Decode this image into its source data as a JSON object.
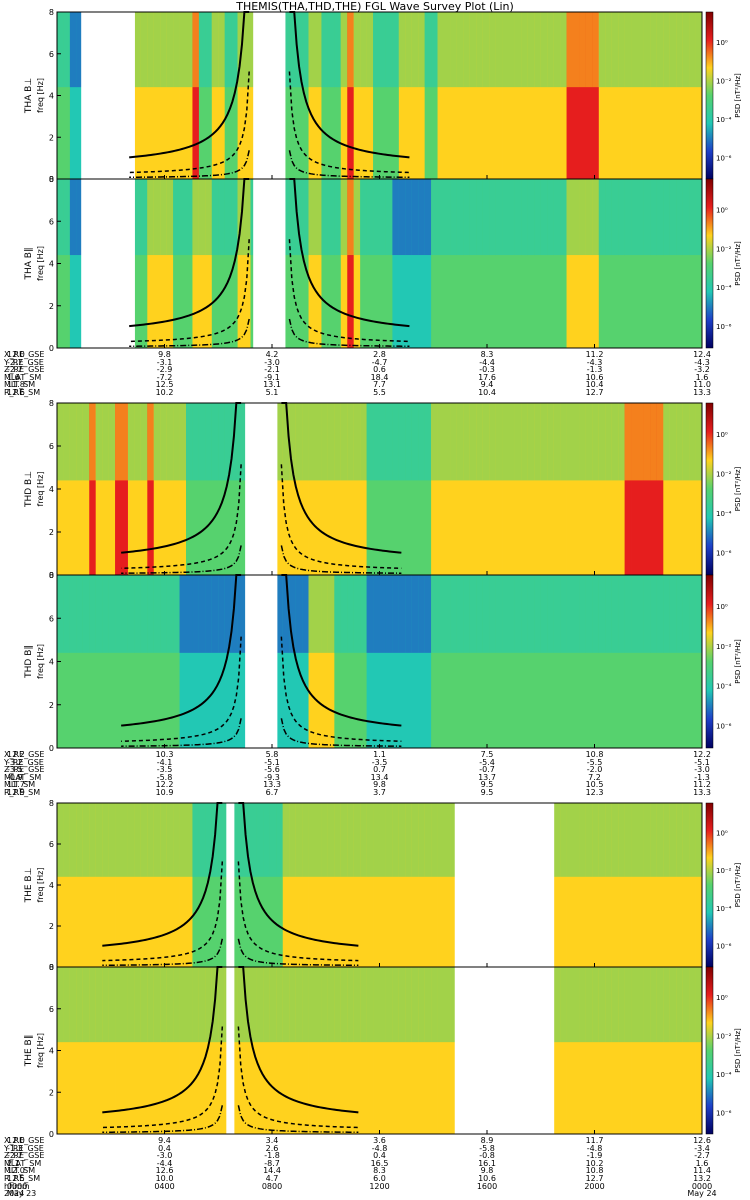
{
  "title": "THEMIS(THA,THD,THE) FGL Wave Survey Plot (Lin)",
  "colors": {
    "background": "#ffffff",
    "spectrum_low": "#1e40c8",
    "spectrum_mid": "#22c8b4",
    "spectrum_high": "#ffd21e",
    "spectrum_peak": "#e61e1e",
    "gap": "#ffffff",
    "curve": "#000000"
  },
  "colorbar": {
    "label": "PSD [nT²/Hz]",
    "ticks": [
      "10⁰",
      "10⁻²",
      "10⁻⁴",
      "10⁻⁶"
    ]
  },
  "freq_label": "freq [Hz]",
  "y_ticks": [
    "0",
    "2",
    "4",
    "6",
    "8"
  ],
  "panels": [
    {
      "probe": "THA",
      "label": "THA B⊥"
    },
    {
      "probe": "THA",
      "label": "THA B∥"
    },
    {
      "probe": "THD",
      "label": "THD B⊥"
    },
    {
      "probe": "THD",
      "label": "THD B∥"
    },
    {
      "probe": "THE",
      "label": "THE B⊥"
    },
    {
      "probe": "THE",
      "label": "THE B∥"
    }
  ],
  "ephemeris": [
    {
      "probe": "THA",
      "rows": [
        {
          "label": "X_RE_GSE",
          "values": [
            "12.0",
            "9.8",
            "4.2",
            "2.8",
            "8.3",
            "11.2",
            "12.4"
          ]
        },
        {
          "label": "Y_RE_GSE",
          "values": [
            "-2.7",
            "-3.1",
            "-3.0",
            "-4.7",
            "-4.4",
            "-4.3",
            "-4.3"
          ]
        },
        {
          "label": "Z_RE_GSE",
          "values": [
            "-2.7",
            "-2.9",
            "-2.1",
            "0.6",
            "-0.3",
            "-1.3",
            "-3.2"
          ]
        },
        {
          "label": "MLAT_SM",
          "values": [
            "1.6",
            "-7.2",
            "-9.1",
            "18.4",
            "17.6",
            "10.6",
            "1.6"
          ]
        },
        {
          "label": "MLT_SM",
          "values": [
            "11.8",
            "12.5",
            "13.1",
            "7.7",
            "9.4",
            "10.4",
            "11.0"
          ]
        },
        {
          "label": "R_RE_SM",
          "values": [
            "12.6",
            "10.2",
            "5.1",
            "5.5",
            "10.4",
            "12.7",
            "13.3"
          ]
        }
      ]
    },
    {
      "probe": "THD",
      "rows": [
        {
          "label": "X_RE_GSE",
          "values": [
            "12.2",
            "10.3",
            "5.8",
            "1.1",
            "7.5",
            "10.8",
            "12.2"
          ]
        },
        {
          "label": "Y_RE_GSE",
          "values": [
            "-3.2",
            "-4.1",
            "-5.1",
            "-3.5",
            "-5.4",
            "-5.5",
            "-5.1"
          ]
        },
        {
          "label": "Z_RE_GSE",
          "values": [
            "-3.5",
            "-3.5",
            "-5.6",
            "0.7",
            "-0.7",
            "-2.0",
            "-3.0"
          ]
        },
        {
          "label": "MLAT_SM",
          "values": [
            "-0.9",
            "-5.8",
            "-9.3",
            "13.4",
            "13.7",
            "7.2",
            "-1.3"
          ]
        },
        {
          "label": "MLT_SM",
          "values": [
            "11.7",
            "12.2",
            "13.3",
            "9.8",
            "9.5",
            "10.5",
            "11.2"
          ]
        },
        {
          "label": "R_RE_SM",
          "values": [
            "12.9",
            "10.9",
            "6.7",
            "3.7",
            "9.5",
            "12.3",
            "13.3"
          ]
        }
      ]
    },
    {
      "probe": "THE",
      "rows": [
        {
          "label": "X_RE_GSE",
          "values": [
            "12.0",
            "9.4",
            "3.4",
            "3.6",
            "8.9",
            "11.7",
            "12.6"
          ]
        },
        {
          "label": "Y_RE_GSE",
          "values": [
            "-1.3",
            "0.4",
            "2.6",
            "-4.8",
            "-5.8",
            "-4.8",
            "-3.4"
          ]
        },
        {
          "label": "Z_RE_GSE",
          "values": [
            "-2.7",
            "-3.0",
            "-1.8",
            "0.4",
            "-0.8",
            "-1.9",
            "-2.7"
          ]
        },
        {
          "label": "MLAT_SM",
          "values": [
            "2.1",
            "-4.4",
            "-8.7",
            "16.5",
            "16.1",
            "10.2",
            "1.6"
          ]
        },
        {
          "label": "MLT_SM",
          "values": [
            "12.0",
            "12.6",
            "14.4",
            "8.3",
            "9.8",
            "10.8",
            "11.4"
          ]
        },
        {
          "label": "R_RE_SM",
          "values": [
            "12.5",
            "10.0",
            "4.7",
            "6.0",
            "10.6",
            "12.7",
            "13.2"
          ]
        },
        {
          "label": "hhmm",
          "values": [
            "0000",
            "0400",
            "0800",
            "1200",
            "1600",
            "2000",
            "0000"
          ]
        },
        {
          "label": "2024",
          "values": [
            "May 23",
            "",
            "",
            "",
            "",
            "",
            "May 24"
          ]
        }
      ]
    }
  ],
  "chart_data": {
    "type": "heatmap",
    "title": "THEMIS(THA,THD,THE) FGL Wave Survey Plot (Lin)",
    "ylabel": "freq [Hz]",
    "ylim": [
      0,
      8
    ],
    "yticks": [
      0,
      2,
      4,
      6,
      8
    ],
    "xlim_hours": [
      0,
      24
    ],
    "x_tick_labels": [
      "0000",
      "0400",
      "0800",
      "1200",
      "1600",
      "2000",
      "0000"
    ],
    "date_labels": [
      "May 23",
      "May 24"
    ],
    "colorbar_label": "PSD [nT²/Hz]",
    "colorbar_ticks": [
      "10⁰",
      "10⁻²",
      "10⁻⁴",
      "10⁻⁶"
    ],
    "series": [
      {
        "panel": "THA B⊥",
        "gaps_hours": [
          [
            0.9,
            2.9
          ],
          [
            7.3,
            8.5
          ]
        ],
        "intensity": [
          2,
          2,
          1,
          1,
          1,
          1,
          1,
          1,
          2,
          2,
          2,
          3,
          3,
          3,
          3,
          3,
          3,
          3,
          3,
          3,
          3,
          4,
          2,
          2,
          3,
          3,
          2,
          2,
          3,
          3,
          3,
          2,
          2,
          2,
          2,
          2,
          2,
          2,
          2,
          3,
          3,
          2,
          2,
          2,
          3,
          4,
          3,
          3,
          3,
          2,
          2,
          2,
          2,
          3,
          3,
          3,
          3,
          2,
          2,
          3,
          3,
          3,
          3,
          3,
          3,
          3,
          3,
          3,
          3,
          3,
          3,
          3,
          3,
          3,
          3,
          3,
          3,
          3,
          3,
          4,
          4,
          4,
          4,
          4,
          3,
          3,
          3,
          3,
          3,
          3,
          3,
          3,
          3,
          3,
          3,
          3,
          3,
          3,
          3,
          3
        ]
      },
      {
        "panel": "THA B∥",
        "gaps_hours": [
          [
            0.9,
            2.9
          ],
          [
            7.3,
            8.5
          ]
        ],
        "intensity": [
          2,
          2,
          1,
          1,
          1,
          1,
          1,
          1,
          1,
          1,
          1,
          2,
          2,
          2,
          3,
          3,
          3,
          3,
          2,
          2,
          2,
          3,
          3,
          3,
          2,
          2,
          2,
          2,
          3,
          3,
          2,
          2,
          2,
          2,
          2,
          2,
          2,
          2,
          2,
          3,
          3,
          2,
          2,
          2,
          3,
          4,
          3,
          2,
          2,
          2,
          2,
          2,
          1,
          1,
          1,
          1,
          1,
          1,
          2,
          2,
          2,
          2,
          2,
          2,
          2,
          2,
          2,
          2,
          2,
          2,
          2,
          2,
          2,
          2,
          2,
          2,
          2,
          2,
          2,
          3,
          3,
          3,
          3,
          3,
          2,
          2,
          2,
          2,
          2,
          2,
          2,
          2,
          2,
          2,
          2,
          2,
          2,
          2,
          2,
          2
        ]
      },
      {
        "panel": "THD B⊥",
        "gaps_hours": [
          [
            7.0,
            8.2
          ]
        ],
        "intensity": [
          3,
          3,
          3,
          3,
          3,
          4,
          3,
          3,
          3,
          4,
          4,
          3,
          3,
          3,
          4,
          3,
          3,
          3,
          3,
          3,
          2,
          2,
          2,
          2,
          2,
          2,
          2,
          2,
          2,
          2,
          2,
          2,
          2,
          2,
          3,
          3,
          3,
          3,
          3,
          3,
          3,
          3,
          3,
          3,
          3,
          3,
          3,
          3,
          2,
          2,
          2,
          2,
          2,
          2,
          2,
          2,
          2,
          2,
          3,
          3,
          3,
          3,
          3,
          3,
          3,
          3,
          3,
          3,
          3,
          3,
          3,
          3,
          3,
          3,
          3,
          3,
          3,
          3,
          3,
          3,
          3,
          3,
          3,
          3,
          3,
          3,
          3,
          3,
          4,
          4,
          4,
          4,
          4,
          4,
          3,
          3,
          3,
          3,
          3,
          3
        ]
      },
      {
        "panel": "THD B∥",
        "gaps_hours": [
          [
            7.0,
            8.2
          ]
        ],
        "intensity": [
          2,
          2,
          2,
          2,
          2,
          2,
          2,
          2,
          2,
          2,
          2,
          2,
          2,
          2,
          2,
          2,
          2,
          2,
          2,
          1,
          1,
          1,
          1,
          1,
          1,
          1,
          1,
          1,
          1,
          1,
          1,
          1,
          1,
          1,
          1,
          1,
          1,
          1,
          1,
          3,
          3,
          3,
          3,
          2,
          2,
          2,
          2,
          2,
          1,
          1,
          1,
          1,
          1,
          1,
          1,
          1,
          1,
          1,
          2,
          2,
          2,
          2,
          2,
          2,
          2,
          2,
          2,
          2,
          2,
          2,
          2,
          2,
          2,
          2,
          2,
          2,
          2,
          2,
          2,
          2,
          2,
          2,
          2,
          2,
          2,
          2,
          2,
          2,
          2,
          2,
          2,
          2,
          2,
          2,
          2,
          2,
          2,
          2,
          2,
          2
        ]
      },
      {
        "panel": "THE B⊥",
        "gaps_hours": [
          [
            6.3,
            6.6
          ],
          [
            14.8,
            18.5
          ]
        ],
        "intensity": [
          3,
          3,
          3,
          3,
          3,
          3,
          3,
          3,
          3,
          3,
          3,
          3,
          3,
          3,
          3,
          3,
          3,
          3,
          3,
          3,
          3,
          2,
          2,
          2,
          2,
          2,
          2,
          2,
          2,
          2,
          2,
          2,
          2,
          2,
          2,
          3,
          3,
          3,
          3,
          3,
          3,
          3,
          3,
          3,
          3,
          3,
          3,
          3,
          3,
          3,
          3,
          3,
          3,
          3,
          3,
          3,
          3,
          3,
          3,
          3,
          3,
          3,
          3,
          3,
          3,
          3,
          3,
          3,
          3,
          3,
          3,
          3,
          3,
          3,
          3,
          3,
          3,
          3,
          3,
          3,
          3,
          3,
          3,
          3,
          3,
          3,
          3,
          3,
          3,
          3,
          3,
          3,
          3,
          3,
          3,
          3,
          3,
          3,
          3,
          3
        ]
      },
      {
        "panel": "THE B∥",
        "gaps_hours": [
          [
            6.3,
            6.6
          ],
          [
            14.8,
            18.5
          ]
        ],
        "intensity": [
          3,
          3,
          3,
          3,
          3,
          3,
          3,
          3,
          3,
          3,
          3,
          3,
          3,
          3,
          3,
          3,
          3,
          3,
          3,
          3,
          3,
          3,
          3,
          3,
          3,
          3,
          3,
          3,
          3,
          3,
          3,
          3,
          3,
          3,
          3,
          3,
          3,
          3,
          3,
          3,
          3,
          3,
          3,
          3,
          3,
          3,
          3,
          3,
          3,
          3,
          3,
          3,
          3,
          3,
          3,
          3,
          3,
          3,
          3,
          3,
          3,
          3,
          3,
          3,
          3,
          3,
          3,
          3,
          3,
          3,
          3,
          3,
          3,
          3,
          3,
          3,
          3,
          3,
          3,
          3,
          3,
          3,
          3,
          3,
          3,
          3,
          3,
          3,
          3,
          3,
          3,
          3,
          3,
          3,
          3,
          3,
          3,
          3,
          3,
          3
        ]
      }
    ],
    "curves": [
      {
        "name": "f_cp",
        "style": "solid",
        "desc": "ion gyrofrequency line, peaks near perigee"
      },
      {
        "name": "f_cHe",
        "style": "dashed"
      },
      {
        "name": "f_cO",
        "style": "dash-dot"
      }
    ],
    "legend": "none",
    "grid": false
  }
}
